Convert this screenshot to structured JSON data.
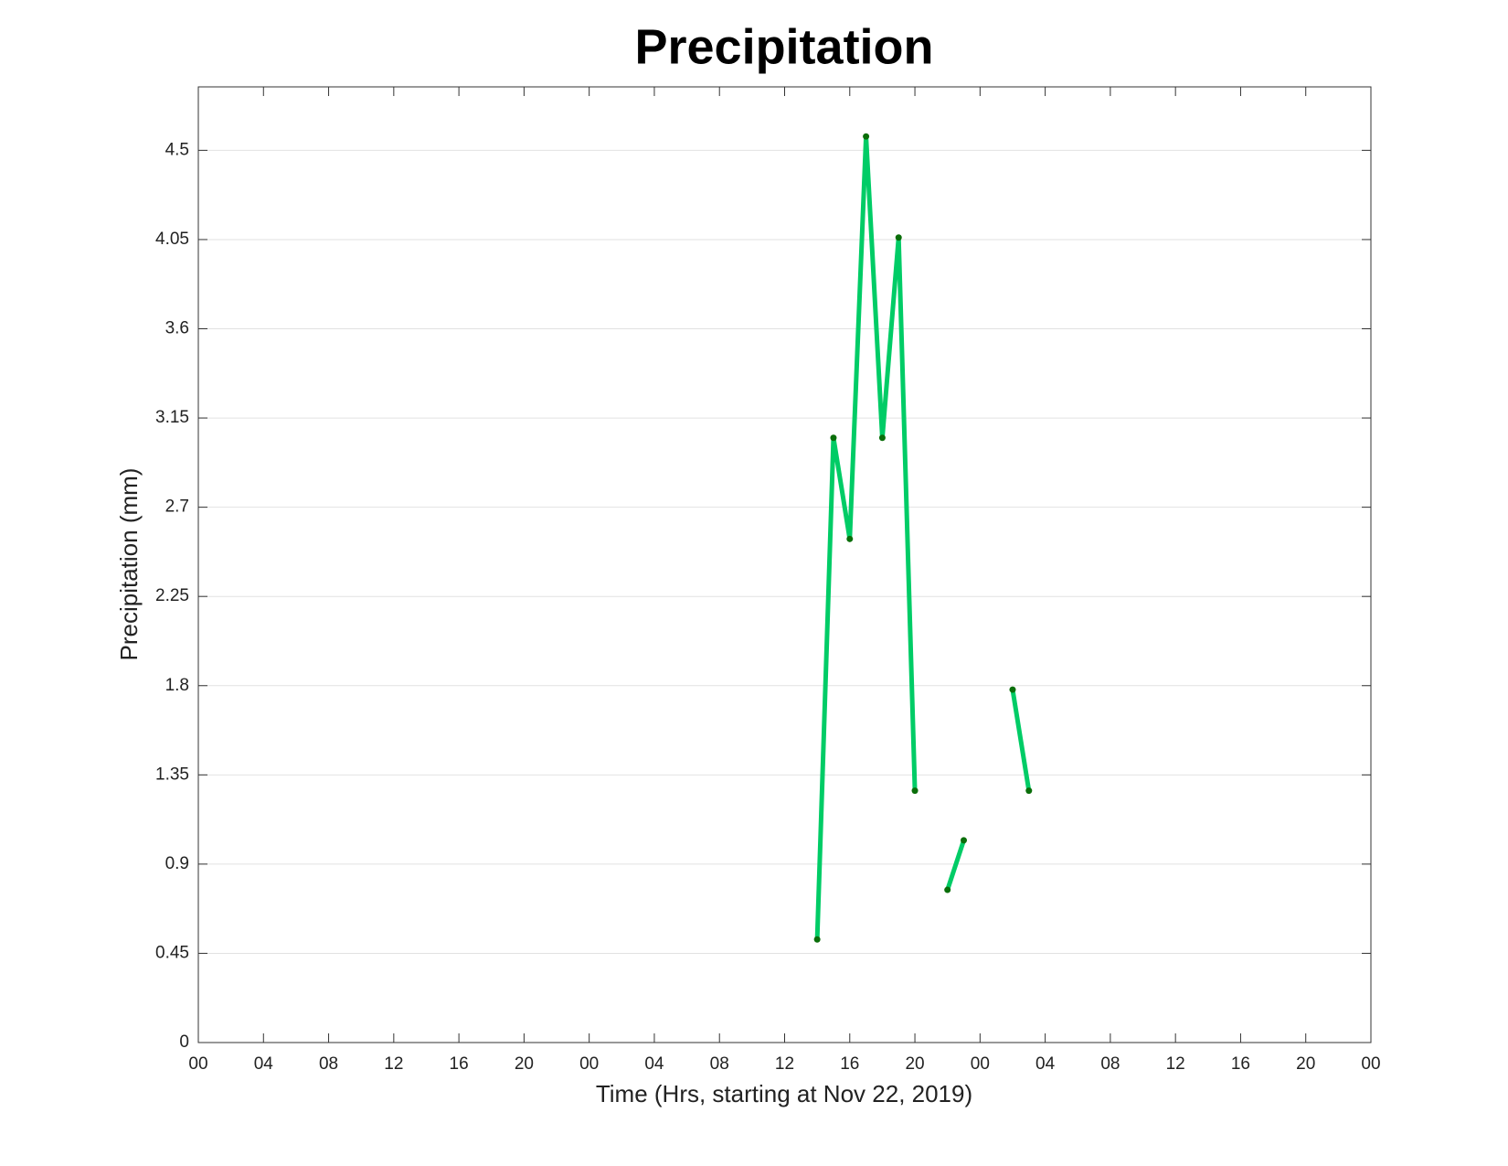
{
  "chart_data": {
    "type": "line",
    "title": "Precipitation",
    "xlabel": "Time (Hrs, starting at Nov 22, 2019)",
    "ylabel": "Precipitation (mm)",
    "x": [
      38,
      39,
      40,
      41,
      42,
      43,
      44,
      45,
      46,
      47,
      48,
      49,
      50,
      51
    ],
    "series": [
      {
        "color": "#00cc66",
        "marker_color": "#0a6e0a",
        "values": [
          0.52,
          3.05,
          2.54,
          4.57,
          3.05,
          4.06,
          1.27,
          null,
          0.77,
          1.02,
          null,
          null,
          1.78,
          1.27
        ]
      }
    ],
    "xlim": [
      0,
      72
    ],
    "xticks": [
      {
        "value": 0,
        "label": "00"
      },
      {
        "value": 4,
        "label": "04"
      },
      {
        "value": 8,
        "label": "08"
      },
      12,
      16,
      20,
      {
        "value": 24,
        "label": "00"
      },
      {
        "value": 28,
        "label": "04"
      },
      {
        "value": 32,
        "label": "08"
      },
      {
        "value": 36,
        "label": "12"
      },
      {
        "value": 40,
        "label": "16"
      },
      {
        "value": 44,
        "label": "20"
      },
      {
        "value": 48,
        "label": "00"
      },
      {
        "value": 52,
        "label": "04"
      },
      {
        "value": 56,
        "label": "08"
      },
      {
        "value": 60,
        "label": "12"
      },
      {
        "value": 64,
        "label": "16"
      },
      {
        "value": 68,
        "label": "20"
      },
      {
        "value": 72,
        "label": "00"
      }
    ],
    "ylim": [
      0,
      4.82
    ],
    "yticks": [
      0,
      0.45,
      0.9,
      1.35,
      1.8,
      2.25,
      2.7,
      3.15,
      3.6,
      4.05,
      4.5
    ],
    "grid": "y"
  }
}
